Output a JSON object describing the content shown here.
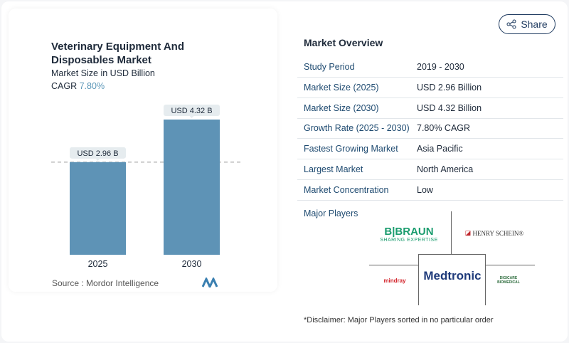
{
  "chart_data": {
    "type": "bar",
    "title": "Veterinary Equipment And Disposables Market",
    "subtitle": "Market Size in USD Billion",
    "cagr_label": "CAGR",
    "cagr_value": "7.80%",
    "categories": [
      "2025",
      "2030"
    ],
    "values": [
      2.96,
      4.32
    ],
    "data_labels": [
      "USD 2.96 B",
      "USD 4.32 B"
    ],
    "bar_color": "#5e93b6",
    "reference_line": 2.96,
    "source": "Source :  Mordor Intelligence"
  },
  "share_label": "Share",
  "overview": {
    "title": "Market Overview",
    "rows": [
      {
        "k": "Study Period",
        "v": "2019 - 2030"
      },
      {
        "k": "Market Size (2025)",
        "v": "USD 2.96 Billion"
      },
      {
        "k": "Market Size (2030)",
        "v": "USD 4.32 Billion"
      },
      {
        "k": "Growth Rate (2025 - 2030)",
        "v": "7.80% CAGR"
      },
      {
        "k": "Fastest Growing Market",
        "v": "Asia Pacific"
      },
      {
        "k": "Largest Market",
        "v": "North America"
      },
      {
        "k": "Market Concentration",
        "v": "Low"
      }
    ]
  },
  "players": {
    "title": "Major Players",
    "logos": [
      "B|BRAUN",
      "SHARING EXPERTISE",
      "HENRY SCHEIN®",
      "mindray",
      "Medtronic",
      "DIGICARE BIOMEDICAL"
    ]
  },
  "disclaimer": "*Disclaimer: Major Players sorted in no particular order"
}
